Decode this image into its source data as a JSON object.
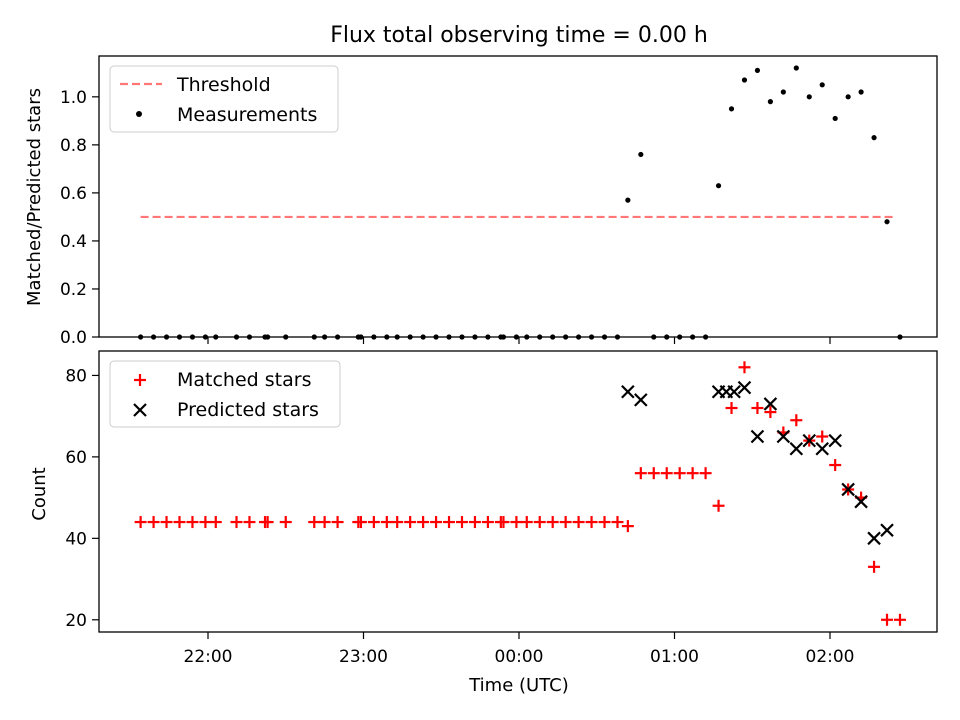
{
  "chart_data": [
    {
      "type": "scatter",
      "title": "Flux total observing time = 0.00 h",
      "ylabel": "Matched/Predicted stars",
      "xlabel": "",
      "ylim": [
        0,
        1.17
      ],
      "yticks": [
        "0.0",
        "0.2",
        "0.4",
        "0.6",
        "0.8",
        "1.0"
      ],
      "threshold": {
        "name": "Threshold",
        "value": 0.5,
        "x_start": "21:34",
        "x_end": "02:25",
        "color": "#ff7777",
        "style": "dashed"
      },
      "legend": {
        "placement": "upper-left",
        "entries": [
          "Threshold",
          "Measurements"
        ]
      },
      "series": [
        {
          "name": "Measurements",
          "color": "#000000",
          "marker": "dot",
          "points": [
            [
              "21:34",
              0
            ],
            [
              "21:39",
              0
            ],
            [
              "21:44",
              0
            ],
            [
              "21:49",
              0
            ],
            [
              "21:54",
              0
            ],
            [
              "21:59",
              0
            ],
            [
              "22:03",
              0
            ],
            [
              "22:11",
              0
            ],
            [
              "22:16",
              0
            ],
            [
              "22:22",
              0
            ],
            [
              "22:23",
              0
            ],
            [
              "22:30",
              0
            ],
            [
              "22:41",
              0
            ],
            [
              "22:45",
              0
            ],
            [
              "22:50",
              0
            ],
            [
              "22:58",
              0
            ],
            [
              "22:59",
              0
            ],
            [
              "23:04",
              0
            ],
            [
              "23:09",
              0
            ],
            [
              "23:13",
              0
            ],
            [
              "23:18",
              0
            ],
            [
              "23:23",
              0
            ],
            [
              "23:28",
              0
            ],
            [
              "23:33",
              0
            ],
            [
              "23:38",
              0
            ],
            [
              "23:43",
              0
            ],
            [
              "23:48",
              0
            ],
            [
              "23:53",
              0
            ],
            [
              "23:54",
              0
            ],
            [
              "23:59",
              0
            ],
            [
              "00:03",
              0
            ],
            [
              "00:08",
              0
            ],
            [
              "00:13",
              0
            ],
            [
              "00:18",
              0
            ],
            [
              "00:23",
              0
            ],
            [
              "00:28",
              0
            ],
            [
              "00:33",
              0
            ],
            [
              "00:38",
              0
            ],
            [
              "00:42",
              0.57
            ],
            [
              "00:47",
              0.76
            ],
            [
              "00:52",
              0
            ],
            [
              "00:57",
              0
            ],
            [
              "01:02",
              0
            ],
            [
              "01:07",
              0
            ],
            [
              "01:12",
              0
            ],
            [
              "01:17",
              0.63
            ],
            [
              "01:22",
              0.95
            ],
            [
              "01:27",
              1.07
            ],
            [
              "01:32",
              1.11
            ],
            [
              "01:37",
              0.98
            ],
            [
              "01:42",
              1.02
            ],
            [
              "01:47",
              1.12
            ],
            [
              "01:52",
              1.0
            ],
            [
              "01:57",
              1.05
            ],
            [
              "02:02",
              0.91
            ],
            [
              "02:07",
              1.0
            ],
            [
              "02:12",
              1.02
            ],
            [
              "02:17",
              0.83
            ],
            [
              "02:22",
              0.48
            ],
            [
              "02:27",
              0
            ]
          ]
        }
      ]
    },
    {
      "type": "scatter",
      "title": "",
      "xlabel": "Time (UTC)",
      "ylabel": "Count",
      "ylim": [
        17,
        86
      ],
      "yticks": [
        "20",
        "40",
        "60",
        "80"
      ],
      "xticks": [
        "22:00",
        "23:00",
        "00:00",
        "01:00",
        "02:00"
      ],
      "legend": {
        "placement": "upper-left",
        "entries": [
          "Matched stars",
          "Predicted stars"
        ]
      },
      "series": [
        {
          "name": "Matched stars",
          "color": "#ff0000",
          "marker": "plus",
          "points": [
            [
              "21:34",
              44
            ],
            [
              "21:39",
              44
            ],
            [
              "21:44",
              44
            ],
            [
              "21:49",
              44
            ],
            [
              "21:54",
              44
            ],
            [
              "21:59",
              44
            ],
            [
              "22:03",
              44
            ],
            [
              "22:11",
              44
            ],
            [
              "22:16",
              44
            ],
            [
              "22:22",
              44
            ],
            [
              "22:23",
              44
            ],
            [
              "22:30",
              44
            ],
            [
              "22:41",
              44
            ],
            [
              "22:45",
              44
            ],
            [
              "22:50",
              44
            ],
            [
              "22:58",
              44
            ],
            [
              "22:59",
              44
            ],
            [
              "23:04",
              44
            ],
            [
              "23:09",
              44
            ],
            [
              "23:13",
              44
            ],
            [
              "23:18",
              44
            ],
            [
              "23:23",
              44
            ],
            [
              "23:28",
              44
            ],
            [
              "23:33",
              44
            ],
            [
              "23:38",
              44
            ],
            [
              "23:43",
              44
            ],
            [
              "23:48",
              44
            ],
            [
              "23:53",
              44
            ],
            [
              "23:54",
              44
            ],
            [
              "23:59",
              44
            ],
            [
              "00:03",
              44
            ],
            [
              "00:08",
              44
            ],
            [
              "00:13",
              44
            ],
            [
              "00:18",
              44
            ],
            [
              "00:23",
              44
            ],
            [
              "00:28",
              44
            ],
            [
              "00:33",
              44
            ],
            [
              "00:38",
              44
            ],
            [
              "00:42",
              43
            ],
            [
              "00:47",
              56
            ],
            [
              "00:52",
              56
            ],
            [
              "00:57",
              56
            ],
            [
              "01:02",
              56
            ],
            [
              "01:07",
              56
            ],
            [
              "01:12",
              56
            ],
            [
              "01:17",
              48
            ],
            [
              "01:22",
              72
            ],
            [
              "01:27",
              82
            ],
            [
              "01:32",
              72
            ],
            [
              "01:37",
              71
            ],
            [
              "01:42",
              66
            ],
            [
              "01:47",
              69
            ],
            [
              "01:52",
              64
            ],
            [
              "01:57",
              65
            ],
            [
              "02:02",
              58
            ],
            [
              "02:07",
              52
            ],
            [
              "02:12",
              50
            ],
            [
              "02:17",
              33
            ],
            [
              "02:22",
              20
            ],
            [
              "02:27",
              20
            ]
          ]
        },
        {
          "name": "Predicted stars",
          "color": "#000000",
          "marker": "x",
          "points": [
            [
              "00:42",
              76
            ],
            [
              "00:47",
              74
            ],
            [
              "01:17",
              76
            ],
            [
              "01:20",
              76
            ],
            [
              "01:23",
              76
            ],
            [
              "01:27",
              77
            ],
            [
              "01:32",
              65
            ],
            [
              "01:37",
              73
            ],
            [
              "01:42",
              65
            ],
            [
              "01:47",
              62
            ],
            [
              "01:52",
              64
            ],
            [
              "01:57",
              62
            ],
            [
              "02:02",
              64
            ],
            [
              "02:07",
              52
            ],
            [
              "02:12",
              49
            ],
            [
              "02:17",
              40
            ],
            [
              "02:22",
              42
            ]
          ]
        }
      ]
    }
  ]
}
